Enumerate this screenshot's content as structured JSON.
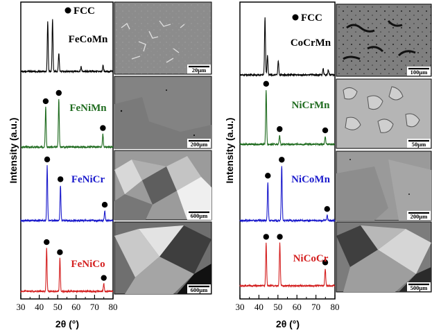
{
  "chart_data": [
    {
      "type": "line",
      "xlabel": "2θ (°)",
      "ylabel": "Intensity (a.u.)",
      "xlim": [
        30,
        80
      ],
      "x_ticks": [
        "30",
        "40",
        "50",
        "60",
        "70",
        "80"
      ],
      "legend": {
        "marker": "●",
        "label": "FCC",
        "placement": "top-right"
      },
      "grid": false,
      "series": [
        {
          "name": "FeCoMn",
          "color": "#000000",
          "micrograph_scale": "20μm",
          "peaks": [
            {
              "x": 44.6,
              "h": 0.82
            },
            {
              "x": 47.2,
              "h": 0.85
            },
            {
              "x": 50.6,
              "h": 0.3
            },
            {
              "x": 62.7,
              "h": 0.08
            },
            {
              "x": 74.6,
              "h": 0.1
            }
          ],
          "fcc_markers": []
        },
        {
          "name": "FeNiMn",
          "color": "#1e6b1e",
          "micrograph_scale": "200μm",
          "peaks": [
            {
              "x": 43.5,
              "h": 0.62
            },
            {
              "x": 50.6,
              "h": 0.75
            },
            {
              "x": 74.5,
              "h": 0.2
            }
          ],
          "fcc_markers": [
            43.5,
            50.6,
            74.5
          ]
        },
        {
          "name": "FeNiCr",
          "color": "#1a1acc",
          "micrograph_scale": "600μm",
          "peaks": [
            {
              "x": 44.3,
              "h": 0.86
            },
            {
              "x": 51.5,
              "h": 0.55
            },
            {
              "x": 75.5,
              "h": 0.15
            }
          ],
          "fcc_markers": [
            44.3,
            51.5,
            75.5
          ]
        },
        {
          "name": "FeNiCo",
          "color": "#d42020",
          "micrograph_scale": "600μm",
          "peaks": [
            {
              "x": 44.0,
              "h": 0.72
            },
            {
              "x": 51.2,
              "h": 0.55
            },
            {
              "x": 75.0,
              "h": 0.12
            }
          ],
          "fcc_markers": [
            44.0,
            51.2,
            75.0
          ]
        }
      ]
    },
    {
      "type": "line",
      "xlabel": "2θ (°)",
      "ylabel": "Intensity (a.u.)",
      "xlim": [
        30,
        80
      ],
      "x_ticks": [
        "30",
        "40",
        "50",
        "60",
        "70",
        "80"
      ],
      "legend": {
        "marker": "●",
        "label": "FCC",
        "placement": "top-right"
      },
      "grid": false,
      "series": [
        {
          "name": "CoCrMn",
          "color": "#000000",
          "micrograph_scale": "100μm",
          "peaks": [
            {
              "x": 43.2,
              "h": 0.9
            },
            {
              "x": 44.5,
              "h": 0.3
            },
            {
              "x": 50.2,
              "h": 0.22
            },
            {
              "x": 73.8,
              "h": 0.1
            },
            {
              "x": 76.5,
              "h": 0.08
            }
          ],
          "fcc_markers": []
        },
        {
          "name": "NiCrMn",
          "color": "#1e6b1e",
          "micrograph_scale": "50μm",
          "peaks": [
            {
              "x": 43.8,
              "h": 0.85
            },
            {
              "x": 50.9,
              "h": 0.14
            },
            {
              "x": 74.9,
              "h": 0.12
            }
          ],
          "fcc_markers": [
            43.8,
            50.9,
            74.9
          ]
        },
        {
          "name": "NiCoMn",
          "color": "#1a1acc",
          "micrograph_scale": "200μm",
          "peaks": [
            {
              "x": 44.7,
              "h": 0.58
            },
            {
              "x": 52.0,
              "h": 0.82
            },
            {
              "x": 75.9,
              "h": 0.08
            }
          ],
          "fcc_markers": [
            44.7,
            52.0,
            75.9
          ]
        },
        {
          "name": "NiCoCr",
          "color": "#d42020",
          "micrograph_scale": "500μm",
          "peaks": [
            {
              "x": 43.8,
              "h": 0.7
            },
            {
              "x": 51.0,
              "h": 0.7
            },
            {
              "x": 74.9,
              "h": 0.28
            }
          ],
          "fcc_markers": [
            43.8,
            51.0,
            74.9
          ]
        }
      ]
    }
  ]
}
